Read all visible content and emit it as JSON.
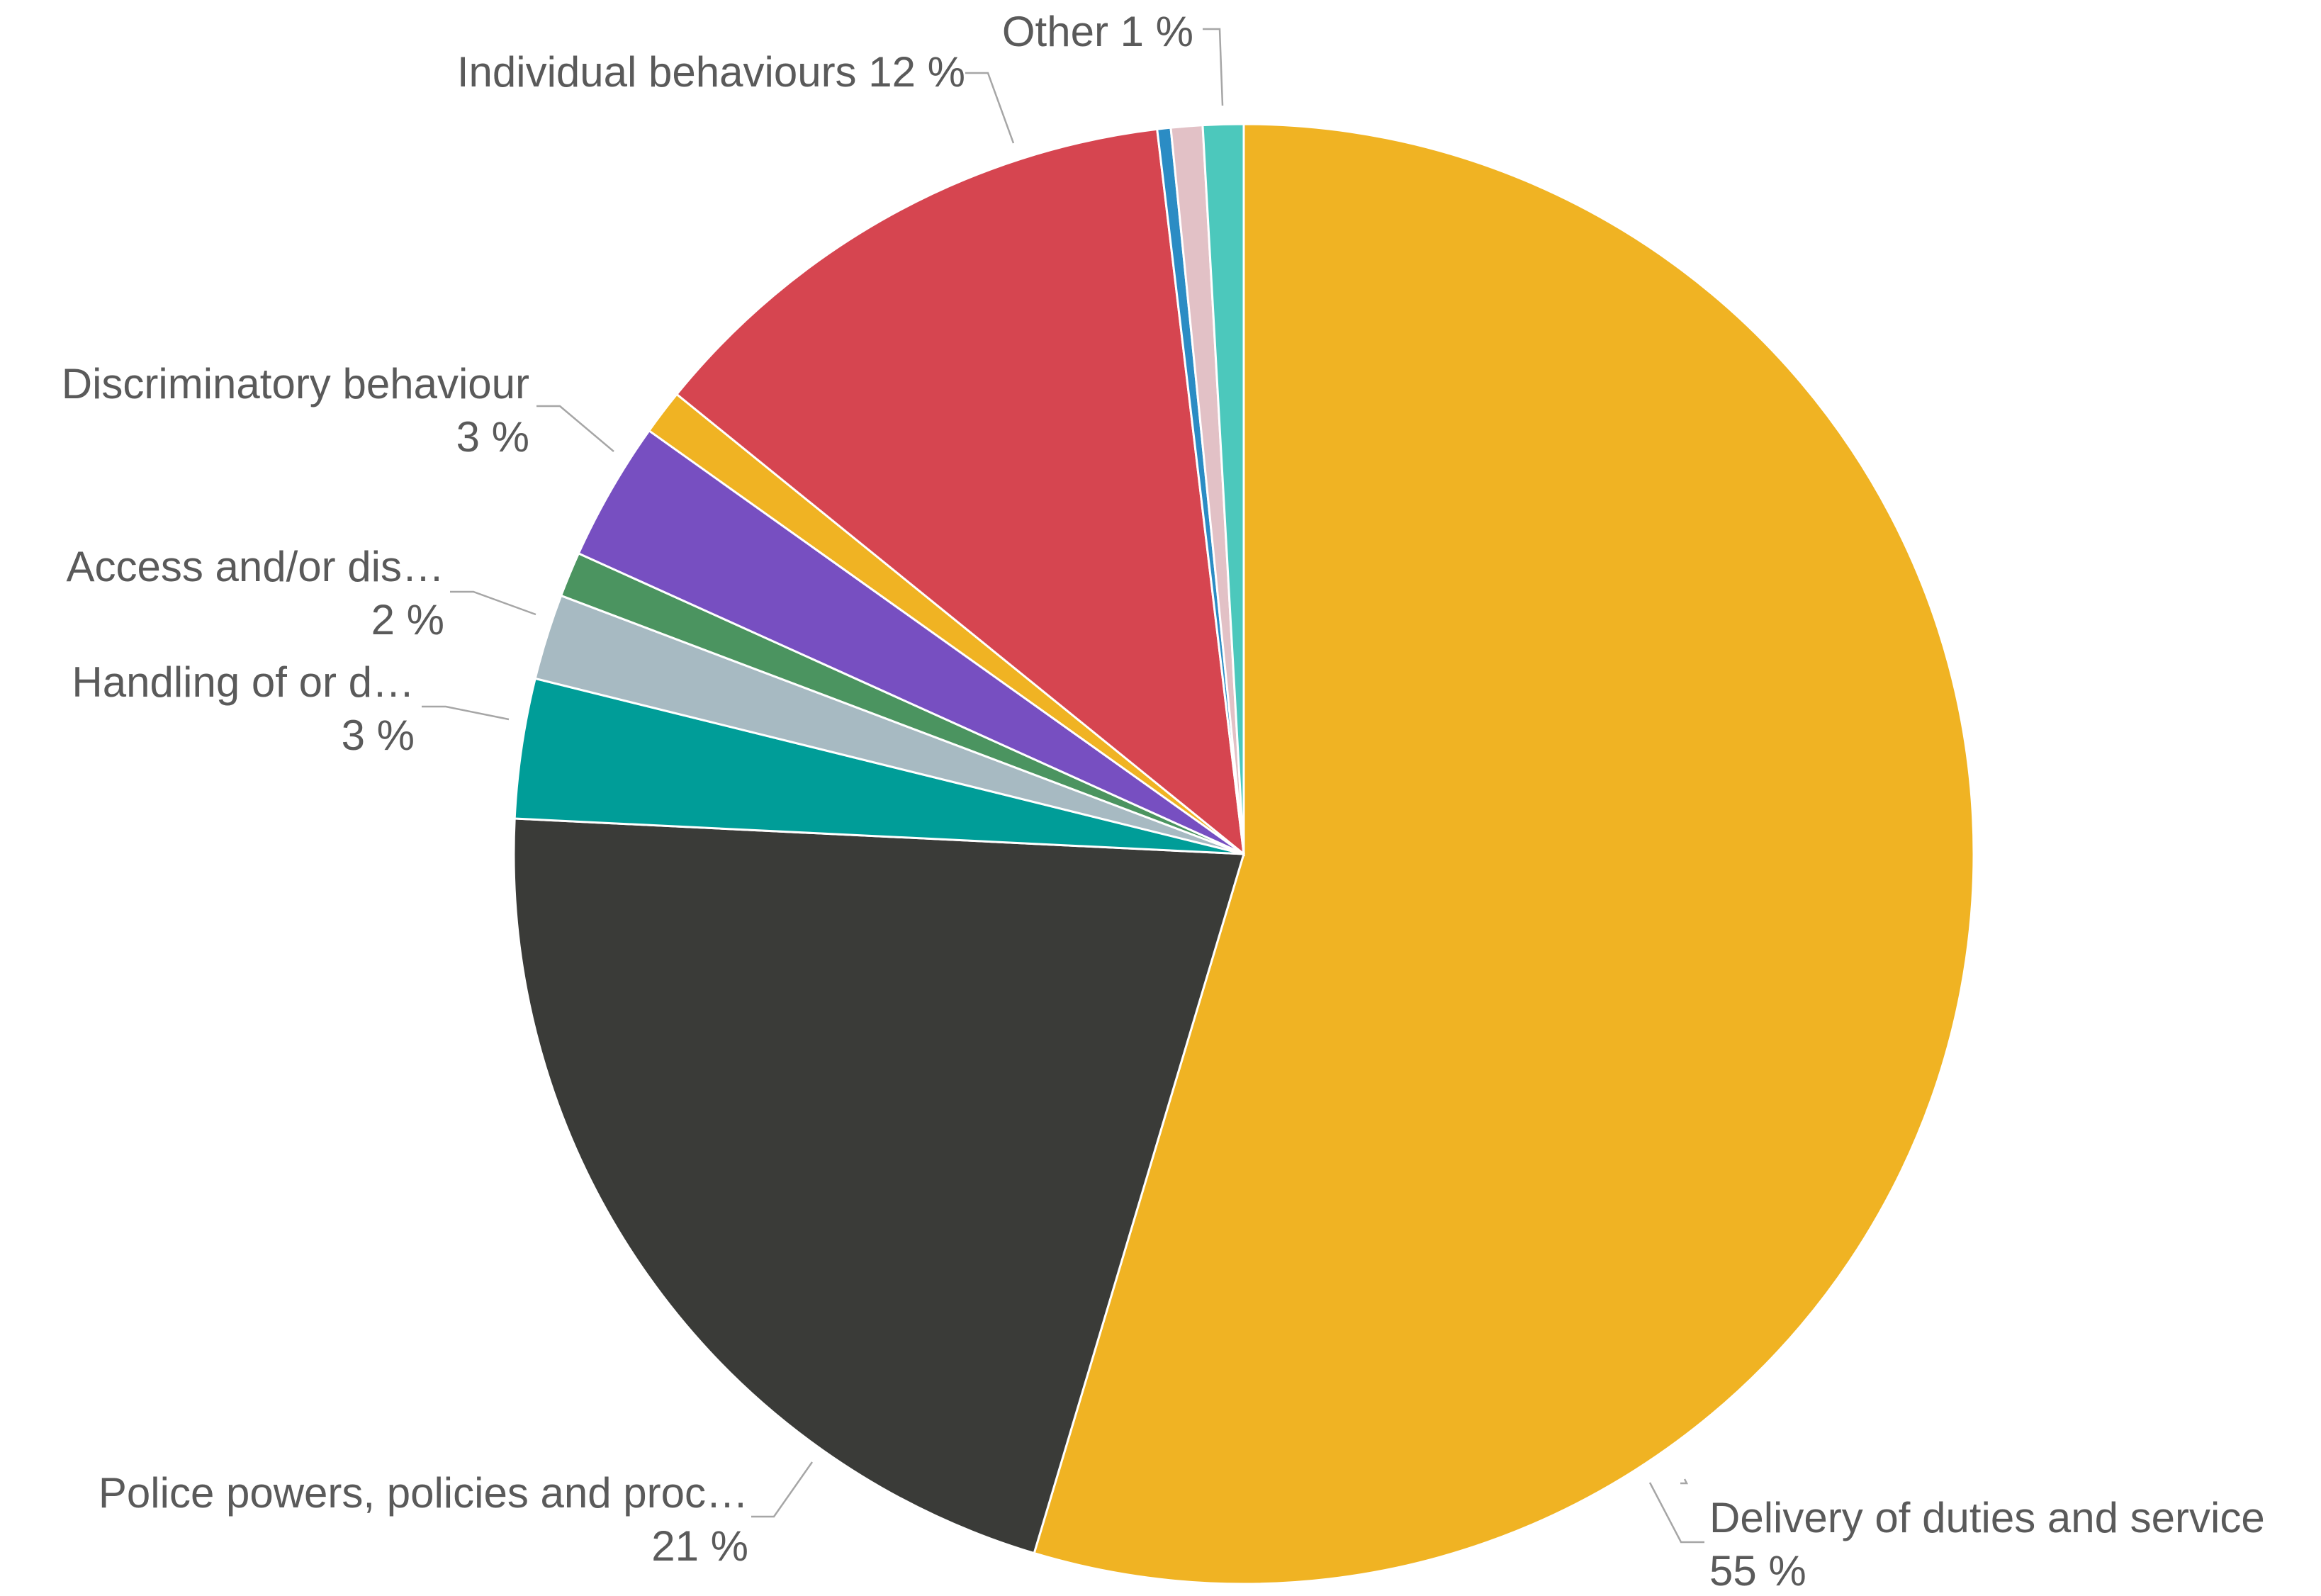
{
  "chart_data": {
    "type": "pie",
    "title": "",
    "unit": "%",
    "start_angle_deg": 0,
    "direction": "clockwise",
    "slices": [
      {
        "name": "Delivery of duties and service",
        "value": 54.8,
        "label_text": "Delivery of duties and service",
        "value_text": "55 %",
        "color": "#F0B323"
      },
      {
        "name": "Police powers, policies and procedures",
        "value": 21.2,
        "label_text": "Police powers, policies and proc…",
        "value_text": "21 %",
        "color": "#3A3B38"
      },
      {
        "name": "Handling of or damage to property",
        "value": 3.1,
        "label_text": "Handling of or d…",
        "value_text": "3 %",
        "color": "#009D98"
      },
      {
        "name": "Access and/or disclosure of information",
        "value": 1.9,
        "label_text": "Access and/or dis…",
        "value_text": "2 %",
        "color": "#A7BAC2"
      },
      {
        "name": "unlabelled-green",
        "value": 1.0,
        "label_text": "",
        "value_text": "",
        "color": "#4B9460"
      },
      {
        "name": "Discriminatory behaviour",
        "value": 3.1,
        "label_text": "Discriminatory behaviour",
        "value_text": "3 %",
        "color": "#774FC1"
      },
      {
        "name": "unlabelled-gold",
        "value": 1.0,
        "label_text": "",
        "value_text": "",
        "color": "#F0B323"
      },
      {
        "name": "Individual behaviours",
        "value": 12.3,
        "label_text": "Individual behaviours",
        "value_text": "12 %",
        "color": "#D64550"
      },
      {
        "name": "unlabelled-blue",
        "value": 0.3,
        "label_text": "",
        "value_text": "",
        "color": "#2B8CC4"
      },
      {
        "name": "unlabelled-pink",
        "value": 0.7,
        "label_text": "",
        "value_text": "",
        "color": "#E2C1C6"
      },
      {
        "name": "Other",
        "value": 0.9,
        "label_text": "Other",
        "value_text": "1 %",
        "color": "#4CC8BC"
      }
    ]
  }
}
